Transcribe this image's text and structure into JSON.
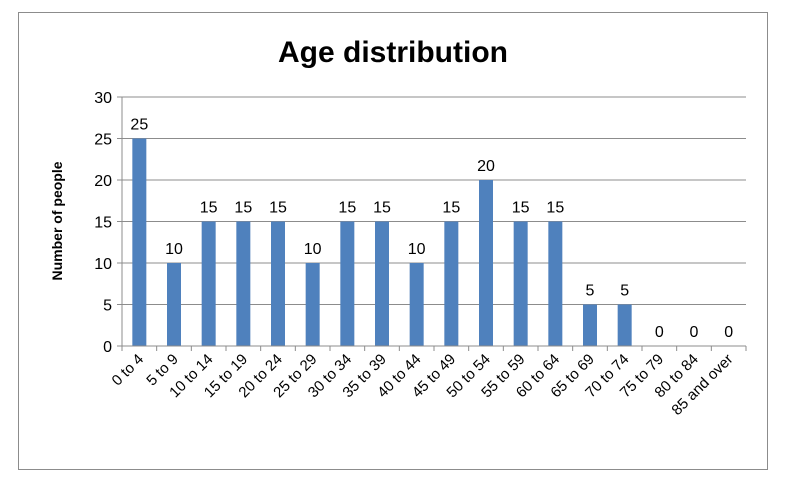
{
  "chart_data": {
    "type": "bar",
    "title": "Age distribution",
    "ylabel": "Number of people",
    "xlabel": "",
    "ylim": [
      0,
      30
    ],
    "yticks": [
      0,
      5,
      10,
      15,
      20,
      25,
      30
    ],
    "grid": true,
    "legend": "none",
    "bar_color": "#4f81bd",
    "categories": [
      "0 to 4",
      "5 to 9",
      "10 to 14",
      "15 to 19",
      "20 to 24",
      "25 to 29",
      "30 to 34",
      "35 to 39",
      "40 to 44",
      "45 to 49",
      "50 to 54",
      "55 to 59",
      "60 to 64",
      "65 to 69",
      "70 to 74",
      "75 to 79",
      "80 to 84",
      "85 and over"
    ],
    "values": [
      25,
      10,
      15,
      15,
      15,
      10,
      15,
      15,
      10,
      15,
      20,
      15,
      15,
      5,
      5,
      0,
      0,
      0
    ]
  }
}
